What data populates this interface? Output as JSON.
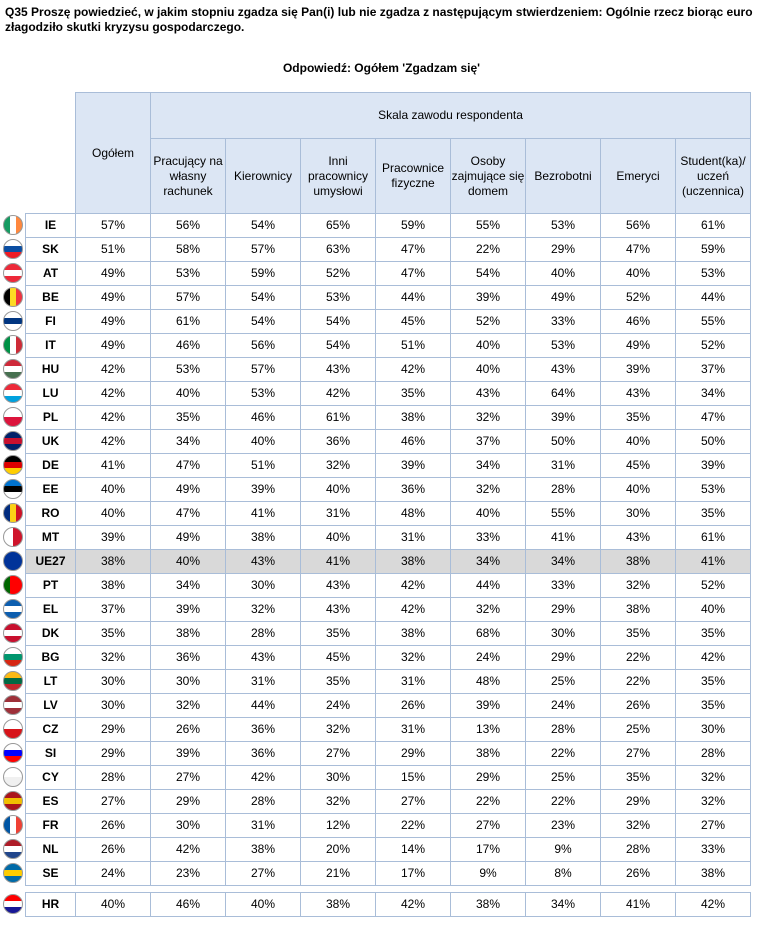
{
  "title": "Q35 Proszę powiedzieć, w jakim stopniu zgadza się Pan(i) lub nie zgadza z następującym stwierdzeniem: Ogólnie rzecz biorąc euro złagodziło skutki kryzysu gospodarczego.",
  "subtitle": "Odpowiedź: Ogółem 'Zgadzam się'",
  "table": {
    "group_header": "Skala zawodu respondenta",
    "columns": [
      "Ogółem",
      "Pracujący na własny rachunek",
      "Kierownicy",
      "Inni pracownicy umysłowi",
      "Pracownice fizyczne",
      "Osoby zajmujące się domem",
      "Bezrobotni",
      "Emeryci",
      "Student(ka)/ uczeń (uczennica)"
    ],
    "rows": [
      {
        "code": "IE",
        "values": [
          "57%",
          "56%",
          "54%",
          "65%",
          "59%",
          "55%",
          "53%",
          "56%",
          "61%"
        ]
      },
      {
        "code": "SK",
        "values": [
          "51%",
          "58%",
          "57%",
          "63%",
          "47%",
          "22%",
          "29%",
          "47%",
          "59%"
        ]
      },
      {
        "code": "AT",
        "values": [
          "49%",
          "53%",
          "59%",
          "52%",
          "47%",
          "54%",
          "40%",
          "40%",
          "53%"
        ]
      },
      {
        "code": "BE",
        "values": [
          "49%",
          "57%",
          "54%",
          "53%",
          "44%",
          "39%",
          "49%",
          "52%",
          "44%"
        ]
      },
      {
        "code": "FI",
        "values": [
          "49%",
          "61%",
          "54%",
          "54%",
          "45%",
          "52%",
          "33%",
          "46%",
          "55%"
        ]
      },
      {
        "code": "IT",
        "values": [
          "49%",
          "46%",
          "56%",
          "54%",
          "51%",
          "40%",
          "53%",
          "49%",
          "52%"
        ]
      },
      {
        "code": "HU",
        "values": [
          "42%",
          "53%",
          "57%",
          "43%",
          "42%",
          "40%",
          "43%",
          "39%",
          "37%"
        ]
      },
      {
        "code": "LU",
        "values": [
          "42%",
          "40%",
          "53%",
          "42%",
          "35%",
          "43%",
          "64%",
          "43%",
          "34%"
        ]
      },
      {
        "code": "PL",
        "values": [
          "42%",
          "35%",
          "46%",
          "61%",
          "38%",
          "32%",
          "39%",
          "35%",
          "47%"
        ]
      },
      {
        "code": "UK",
        "values": [
          "42%",
          "34%",
          "40%",
          "36%",
          "46%",
          "37%",
          "50%",
          "40%",
          "50%"
        ]
      },
      {
        "code": "DE",
        "values": [
          "41%",
          "47%",
          "51%",
          "32%",
          "39%",
          "34%",
          "31%",
          "45%",
          "39%"
        ]
      },
      {
        "code": "EE",
        "values": [
          "40%",
          "49%",
          "39%",
          "40%",
          "36%",
          "32%",
          "28%",
          "40%",
          "53%"
        ]
      },
      {
        "code": "RO",
        "values": [
          "40%",
          "47%",
          "41%",
          "31%",
          "48%",
          "40%",
          "55%",
          "30%",
          "35%"
        ]
      },
      {
        "code": "MT",
        "values": [
          "39%",
          "49%",
          "38%",
          "40%",
          "31%",
          "33%",
          "41%",
          "43%",
          "61%"
        ]
      },
      {
        "code": "UE27",
        "values": [
          "38%",
          "40%",
          "43%",
          "41%",
          "38%",
          "34%",
          "34%",
          "38%",
          "41%"
        ]
      },
      {
        "code": "PT",
        "values": [
          "38%",
          "34%",
          "30%",
          "43%",
          "42%",
          "44%",
          "33%",
          "32%",
          "52%"
        ]
      },
      {
        "code": "EL",
        "values": [
          "37%",
          "39%",
          "32%",
          "43%",
          "42%",
          "32%",
          "29%",
          "38%",
          "40%"
        ]
      },
      {
        "code": "DK",
        "values": [
          "35%",
          "38%",
          "28%",
          "35%",
          "38%",
          "68%",
          "30%",
          "35%",
          "35%"
        ]
      },
      {
        "code": "BG",
        "values": [
          "32%",
          "36%",
          "43%",
          "45%",
          "32%",
          "24%",
          "29%",
          "22%",
          "42%"
        ]
      },
      {
        "code": "LT",
        "values": [
          "30%",
          "30%",
          "31%",
          "35%",
          "31%",
          "48%",
          "25%",
          "22%",
          "35%"
        ]
      },
      {
        "code": "LV",
        "values": [
          "30%",
          "32%",
          "44%",
          "24%",
          "26%",
          "39%",
          "24%",
          "26%",
          "35%"
        ]
      },
      {
        "code": "CZ",
        "values": [
          "29%",
          "26%",
          "36%",
          "32%",
          "31%",
          "13%",
          "28%",
          "25%",
          "30%"
        ]
      },
      {
        "code": "SI",
        "values": [
          "29%",
          "39%",
          "36%",
          "27%",
          "29%",
          "38%",
          "22%",
          "27%",
          "28%"
        ]
      },
      {
        "code": "CY",
        "values": [
          "28%",
          "27%",
          "42%",
          "30%",
          "15%",
          "29%",
          "25%",
          "35%",
          "32%"
        ]
      },
      {
        "code": "ES",
        "values": [
          "27%",
          "29%",
          "28%",
          "32%",
          "27%",
          "22%",
          "22%",
          "29%",
          "32%"
        ]
      },
      {
        "code": "FR",
        "values": [
          "26%",
          "30%",
          "31%",
          "12%",
          "22%",
          "27%",
          "23%",
          "32%",
          "27%"
        ]
      },
      {
        "code": "NL",
        "values": [
          "26%",
          "42%",
          "38%",
          "20%",
          "14%",
          "17%",
          "9%",
          "28%",
          "33%"
        ]
      },
      {
        "code": "SE",
        "values": [
          "24%",
          "23%",
          "27%",
          "21%",
          "17%",
          "9%",
          "8%",
          "26%",
          "38%"
        ]
      },
      {
        "code": "HR",
        "values": [
          "40%",
          "46%",
          "40%",
          "38%",
          "42%",
          "38%",
          "34%",
          "41%",
          "42%"
        ]
      }
    ]
  }
}
